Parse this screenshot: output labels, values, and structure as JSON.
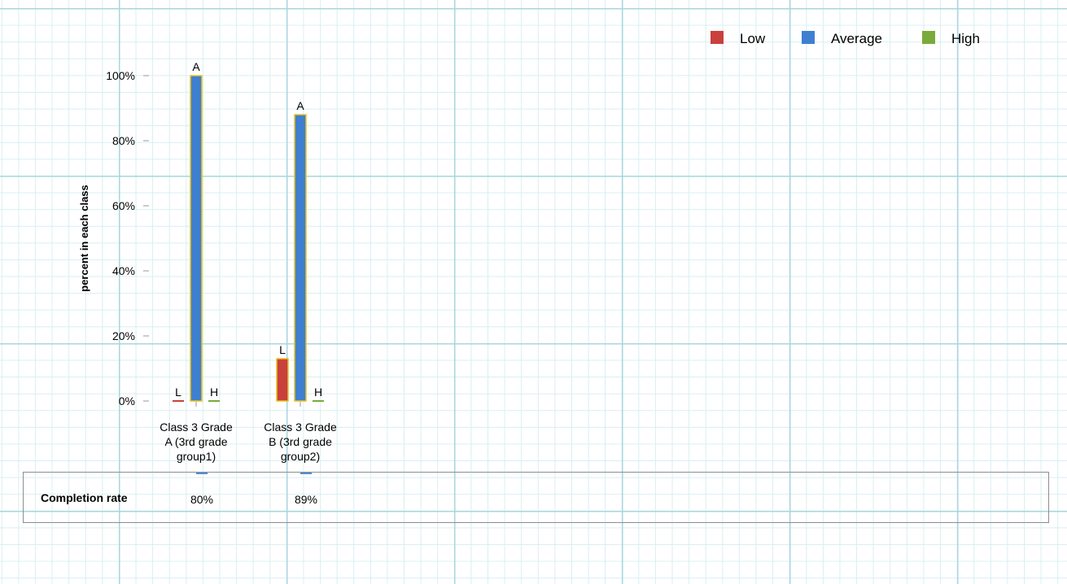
{
  "chart_data": {
    "type": "bar",
    "ylabel": "percent in each class",
    "yticks": [
      "0%",
      "20%",
      "40%",
      "60%",
      "80%",
      "100%"
    ],
    "ylim": [
      0,
      100
    ],
    "legend_position": "top-right",
    "categories": [
      [
        "Class 3 Grade",
        "A (3rd grade",
        "group1)"
      ],
      [
        "Class 3 Grade",
        "B (3rd grade",
        "group2)"
      ]
    ],
    "series": [
      {
        "name": "Low",
        "label": "L",
        "color": "#c9403c",
        "values": [
          0,
          13
        ]
      },
      {
        "name": "Average",
        "label": "A",
        "color": "#3f7fd0",
        "values": [
          100,
          88
        ]
      },
      {
        "name": "High",
        "label": "H",
        "color": "#7aaa3a",
        "values": [
          0,
          0
        ]
      }
    ],
    "bar_outline_color": "#e8c31d"
  },
  "completion": {
    "label": "Completion rate",
    "values": [
      "80%",
      "89%"
    ]
  }
}
